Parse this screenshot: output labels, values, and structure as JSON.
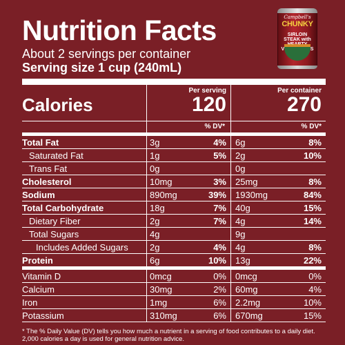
{
  "header": {
    "title": "Nutrition Facts",
    "servings": "About 2 servings per container",
    "serving_size": "Serving size  1 cup (240mL)"
  },
  "product": {
    "brand": "Campbell's",
    "line": "CHUNKY",
    "flavor": "SIRLOIN STEAK with HEARTY VEGETABLES"
  },
  "calories": {
    "label": "Calories",
    "col1_header": "Per serving",
    "col1_value": "120",
    "col2_header": "Per container",
    "col2_value": "270"
  },
  "dv_header": "% DV*",
  "nutrients": [
    {
      "label": "Total Fat",
      "a1": "3g",
      "p1": "4%",
      "a2": "6g",
      "p2": "8%"
    },
    {
      "label": "Saturated Fat",
      "a1": "1g",
      "p1": "5%",
      "a2": "2g",
      "p2": "10%"
    },
    {
      "label": "Trans Fat",
      "a1": "0g",
      "p1": "",
      "a2": "0g",
      "p2": ""
    },
    {
      "label": "Cholesterol",
      "a1": "10mg",
      "p1": "3%",
      "a2": "25mg",
      "p2": "8%"
    },
    {
      "label": "Sodium",
      "a1": "890mg",
      "p1": "39%",
      "a2": "1930mg",
      "p2": "84%"
    },
    {
      "label": "Total Carbohydrate",
      "a1": "18g",
      "p1": "7%",
      "a2": "40g",
      "p2": "15%"
    },
    {
      "label": "Dietary Fiber",
      "a1": "2g",
      "p1": "7%",
      "a2": "4g",
      "p2": "14%"
    },
    {
      "label": "Total Sugars",
      "a1": "4g",
      "p1": "",
      "a2": "9g",
      "p2": ""
    },
    {
      "label": "Includes Added Sugars",
      "a1": "2g",
      "p1": "4%",
      "a2": "4g",
      "p2": "8%"
    },
    {
      "label": "Protein",
      "a1": "6g",
      "p1": "10%",
      "a2": "13g",
      "p2": "22%"
    }
  ],
  "vitamins": [
    {
      "label": "Vitamin D",
      "a1": "0mcg",
      "p1": "0%",
      "a2": "0mcg",
      "p2": "0%"
    },
    {
      "label": "Calcium",
      "a1": "30mg",
      "p1": "2%",
      "a2": "60mg",
      "p2": "4%"
    },
    {
      "label": "Iron",
      "a1": "1mg",
      "p1": "6%",
      "a2": "2.2mg",
      "p2": "10%"
    },
    {
      "label": "Potassium",
      "a1": "310mg",
      "p1": "6%",
      "a2": "670mg",
      "p2": "15%"
    }
  ],
  "footnote": "* The % Daily Value (DV) tells you how much a nutrient in a serving of food contributes to a daily diet. 2,000 calories a day is used for general nutrition advice.",
  "colors": {
    "background": "#7a1f26",
    "text": "#ffffff"
  }
}
